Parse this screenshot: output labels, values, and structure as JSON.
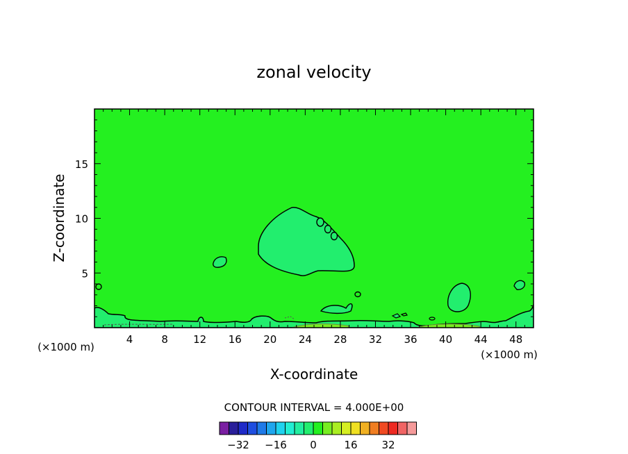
{
  "chart_data": {
    "type": "contour",
    "title": "zonal velocity",
    "xlabel": "X-coordinate",
    "ylabel": "Z-coordinate",
    "x_units": "(×1000 m)",
    "xlim": [
      0,
      50
    ],
    "ylim": [
      0,
      20
    ],
    "x_ticks": [
      4,
      8,
      12,
      16,
      20,
      24,
      28,
      32,
      36,
      40,
      44,
      48
    ],
    "y_ticks": [
      5,
      10,
      15
    ],
    "x_tick_labels": [
      "4",
      "8",
      "12",
      "16",
      "20",
      "24",
      "28",
      "32",
      "36",
      "40",
      "44",
      "48"
    ],
    "y_tick_labels": [
      "5",
      "10",
      "15"
    ],
    "background_value": 0,
    "contour_interval_label": "CONTOUR INTERVAL = 4.000E+00",
    "contour_interval": 4,
    "colorbar": {
      "levels": [
        -36,
        -32,
        -28,
        -24,
        -20,
        -16,
        -12,
        -8,
        -4,
        0,
        4,
        8,
        12,
        16,
        20,
        24,
        28,
        32,
        36
      ],
      "colors": [
        "#7a1fa2",
        "#2a1f9a",
        "#1f2ac8",
        "#1f4ee0",
        "#1f7ae8",
        "#1fa6ee",
        "#1fd2ee",
        "#22eed2",
        "#22eea0",
        "#22ee6e",
        "#24f020",
        "#78ee22",
        "#aaee22",
        "#d6ee22",
        "#f0e022",
        "#f0b022",
        "#f07e22",
        "#f04a22",
        "#ee2a22",
        "#f06464",
        "#f59a9a"
      ],
      "tick_values": [
        -32,
        -16,
        0,
        16,
        32
      ],
      "tick_labels": [
        "−32",
        "−16",
        "0",
        "16",
        "32"
      ]
    },
    "features": [
      {
        "kind": "closed_contour",
        "level": -4,
        "fill": "#22ee6e",
        "center": [
          24,
          8
        ],
        "extent_x": [
          18.5,
          30
        ],
        "extent_z": [
          4.6,
          11
        ]
      },
      {
        "kind": "surface_layer",
        "level": -4,
        "extent_z": [
          0,
          1.5
        ]
      },
      {
        "kind": "small_closed_contours",
        "near": [
          [
            26,
            9.6
          ],
          [
            27,
            9
          ],
          [
            27.6,
            8.4
          ],
          [
            14,
            6
          ],
          [
            40.8,
            2.5
          ],
          [
            48.5,
            4
          ],
          [
            30,
            3
          ]
        ]
      }
    ]
  }
}
